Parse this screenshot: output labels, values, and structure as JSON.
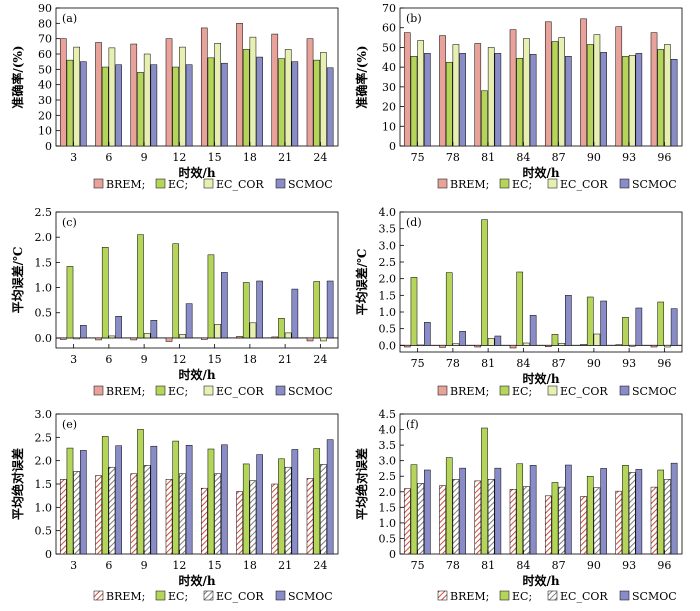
{
  "colors": {
    "BREM": "#e8a29a",
    "EC": "#b5d55a",
    "EC_COR": "#e8efb2",
    "SCMOC": "#8a8cc8"
  },
  "legend_items": [
    {
      "key": "BREM",
      "label": "BREM;"
    },
    {
      "key": "EC",
      "label": "EC;"
    },
    {
      "key": "EC_COR",
      "label": "EC_COR"
    },
    {
      "key": "SCMOC",
      "label": "SCMOC"
    }
  ],
  "chart_data": [
    {
      "panel": "(a)",
      "type": "bar",
      "hatched": false,
      "xlabel": "时效/h",
      "ylabel": "准确率/(%)",
      "ylim": [
        0,
        90
      ],
      "yticks": [
        0,
        10,
        20,
        30,
        40,
        50,
        60,
        70,
        80,
        90
      ],
      "ytick_labels": [
        "0",
        "10",
        "20",
        "30",
        "40",
        "50",
        "60",
        "70",
        "80",
        "90"
      ],
      "categories": [
        "3",
        "6",
        "9",
        "12",
        "15",
        "18",
        "21",
        "24"
      ],
      "series": [
        {
          "key": "BREM",
          "values": [
            70,
            67.5,
            66.5,
            70,
            77,
            80,
            73,
            70
          ]
        },
        {
          "key": "EC",
          "values": [
            56,
            51.5,
            48,
            51.5,
            57.5,
            63,
            57,
            56
          ]
        },
        {
          "key": "EC_COR",
          "values": [
            64.5,
            64,
            60,
            64.5,
            67,
            71,
            63,
            61
          ]
        },
        {
          "key": "SCMOC",
          "values": [
            55,
            53,
            53,
            53,
            54,
            58,
            55,
            51
          ]
        }
      ]
    },
    {
      "panel": "(b)",
      "type": "bar",
      "hatched": false,
      "xlabel": "时效/h",
      "ylabel": "准确率/(%)",
      "ylim": [
        0,
        70
      ],
      "yticks": [
        0,
        10,
        20,
        30,
        40,
        50,
        60,
        70
      ],
      "ytick_labels": [
        "0",
        "10",
        "20",
        "30",
        "40",
        "50",
        "60",
        "70"
      ],
      "categories": [
        "75",
        "78",
        "81",
        "84",
        "87",
        "90",
        "93",
        "96"
      ],
      "series": [
        {
          "key": "BREM",
          "values": [
            57.5,
            56,
            52,
            59,
            63,
            64.5,
            60.5,
            57.5
          ]
        },
        {
          "key": "EC",
          "values": [
            45.5,
            42.5,
            28,
            44.5,
            53,
            51.5,
            45.5,
            49
          ]
        },
        {
          "key": "EC_COR",
          "values": [
            53.5,
            51.5,
            50,
            54.5,
            55,
            56.5,
            46,
            51.5
          ]
        },
        {
          "key": "SCMOC",
          "values": [
            47,
            47,
            47,
            46.5,
            45.5,
            47.5,
            47,
            44
          ]
        }
      ]
    },
    {
      "panel": "(c)",
      "type": "bar",
      "hatched": false,
      "xlabel": "时效/h",
      "ylabel": "平均误差/℃",
      "ylim": [
        -0.2,
        2.5
      ],
      "yticks": [
        0,
        0.5,
        1,
        1.5,
        2,
        2.5
      ],
      "ytick_labels": [
        "0.0",
        "0.5",
        "1.0",
        "1.5",
        "2.0",
        "2.5"
      ],
      "categories": [
        "3",
        "6",
        "9",
        "12",
        "15",
        "18",
        "21",
        "24"
      ],
      "series": [
        {
          "key": "BREM",
          "values": [
            -0.03,
            -0.04,
            -0.04,
            -0.07,
            -0.03,
            0.03,
            0.02,
            -0.06
          ]
        },
        {
          "key": "EC",
          "values": [
            1.42,
            1.8,
            2.05,
            1.87,
            1.65,
            1.1,
            0.39,
            1.12
          ]
        },
        {
          "key": "EC_COR",
          "values": [
            -0.02,
            0.04,
            0.09,
            0.07,
            0.27,
            0.3,
            0.1,
            -0.06
          ]
        },
        {
          "key": "SCMOC",
          "values": [
            0.25,
            0.43,
            0.35,
            0.68,
            1.3,
            1.13,
            0.97,
            1.13
          ]
        }
      ]
    },
    {
      "panel": "(d)",
      "type": "bar",
      "hatched": false,
      "xlabel": "时效/h",
      "ylabel": "平均误差/℃",
      "ylim": [
        -0.2,
        4.0
      ],
      "yticks": [
        0,
        0.5,
        1,
        1.5,
        2,
        2.5,
        3,
        3.5,
        4
      ],
      "ytick_labels": [
        "0.0",
        "0.5",
        "1.0",
        "1.5",
        "2.0",
        "2.5",
        "3.0",
        "3.5",
        "4.0"
      ],
      "categories": [
        "75",
        "78",
        "81",
        "84",
        "87",
        "90",
        "93",
        "96"
      ],
      "series": [
        {
          "key": "BREM",
          "values": [
            -0.05,
            -0.06,
            -0.05,
            -0.08,
            -0.04,
            0.03,
            0.02,
            -0.05
          ]
        },
        {
          "key": "EC",
          "values": [
            2.04,
            2.18,
            3.77,
            2.2,
            0.33,
            1.45,
            0.84,
            1.3
          ]
        },
        {
          "key": "EC_COR",
          "values": [
            0.01,
            0.05,
            0.21,
            0.07,
            0.06,
            0.34,
            -0.03,
            -0.05
          ]
        },
        {
          "key": "SCMOC",
          "values": [
            0.69,
            0.42,
            0.28,
            0.9,
            1.5,
            1.33,
            1.12,
            1.1
          ]
        }
      ]
    },
    {
      "panel": "(e)",
      "type": "bar",
      "hatched": true,
      "xlabel": "时效/h",
      "ylabel": "平均绝对误差",
      "ylim": [
        0,
        3.0
      ],
      "yticks": [
        0,
        0.5,
        1,
        1.5,
        2,
        2.5,
        3
      ],
      "ytick_labels": [
        "0",
        "0.5",
        "1.0",
        "1.5",
        "2.0",
        "2.5",
        "3.0"
      ],
      "categories": [
        "3",
        "6",
        "9",
        "12",
        "15",
        "18",
        "21",
        "24"
      ],
      "series": [
        {
          "key": "BREM",
          "values": [
            1.6,
            1.68,
            1.72,
            1.6,
            1.41,
            1.34,
            1.5,
            1.62
          ]
        },
        {
          "key": "EC",
          "values": [
            2.27,
            2.52,
            2.67,
            2.42,
            2.25,
            1.93,
            2.04,
            2.26
          ]
        },
        {
          "key": "EC_COR",
          "values": [
            1.77,
            1.86,
            1.9,
            1.72,
            1.72,
            1.57,
            1.86,
            1.92
          ]
        },
        {
          "key": "SCMOC",
          "values": [
            2.22,
            2.32,
            2.31,
            2.33,
            2.34,
            2.13,
            2.24,
            2.45
          ]
        }
      ]
    },
    {
      "panel": "(f)",
      "type": "bar",
      "hatched": true,
      "xlabel": "时效/h",
      "ylabel": "平均绝对误差",
      "ylim": [
        0,
        4.5
      ],
      "yticks": [
        0,
        0.5,
        1,
        1.5,
        2,
        2.5,
        3,
        3.5,
        4,
        4.5
      ],
      "ytick_labels": [
        "0",
        "0.5",
        "1.0",
        "1.5",
        "2.0",
        "2.5",
        "3.0",
        "3.5",
        "4.0",
        "4.5"
      ],
      "categories": [
        "75",
        "78",
        "81",
        "84",
        "87",
        "90",
        "93",
        "96"
      ],
      "series": [
        {
          "key": "BREM",
          "values": [
            2.1,
            2.2,
            2.35,
            2.08,
            1.87,
            1.85,
            2.02,
            2.15
          ]
        },
        {
          "key": "EC",
          "values": [
            2.87,
            3.1,
            4.05,
            2.9,
            2.3,
            2.5,
            2.85,
            2.7
          ]
        },
        {
          "key": "EC_COR",
          "values": [
            2.27,
            2.4,
            2.4,
            2.17,
            2.15,
            2.13,
            2.62,
            2.4
          ]
        },
        {
          "key": "SCMOC",
          "values": [
            2.7,
            2.76,
            2.76,
            2.85,
            2.86,
            2.75,
            2.72,
            2.92
          ]
        }
      ]
    }
  ]
}
